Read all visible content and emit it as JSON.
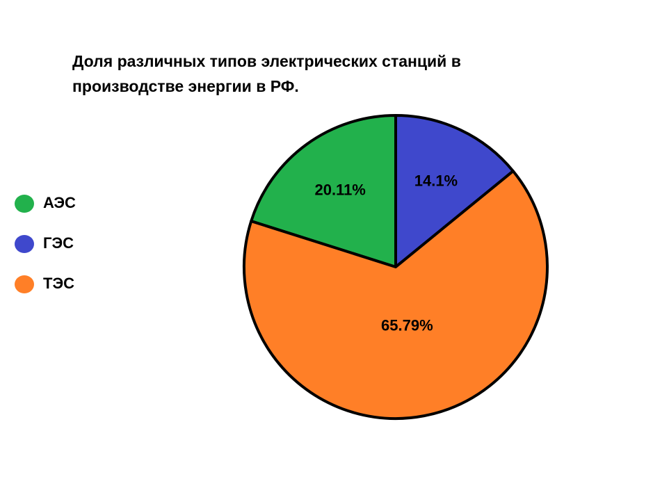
{
  "chart_data": {
    "type": "pie",
    "title": "Доля различных типов электрических станций в производстве энергии в РФ.",
    "categories": [
      "АЭС",
      "ГЭС",
      "ТЭС"
    ],
    "values": [
      20.11,
      14.1,
      65.79
    ],
    "value_labels": [
      "20.11%",
      "14.1%",
      "65.79%"
    ],
    "colors": [
      "#22b14c",
      "#3f48cc",
      "#ff7f27"
    ],
    "legend": "left"
  }
}
